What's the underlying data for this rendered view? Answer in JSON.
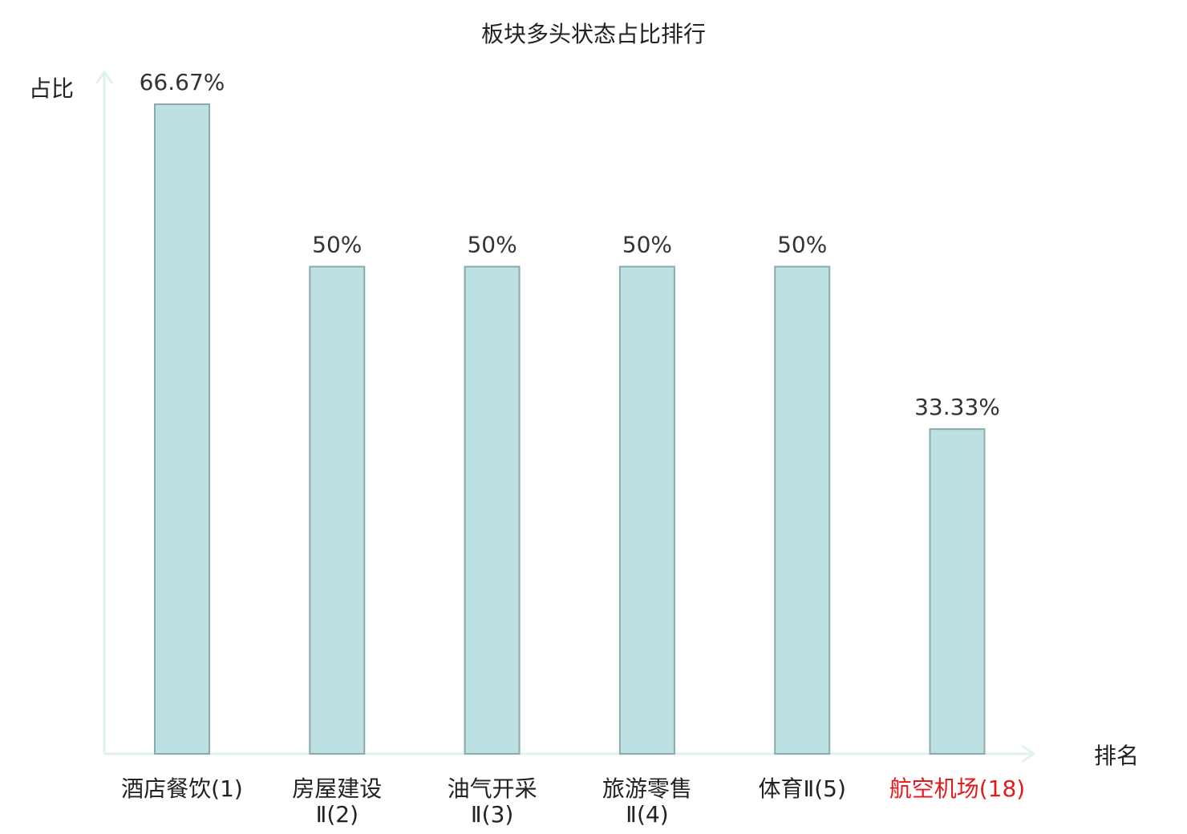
{
  "chart_data": {
    "type": "bar",
    "title": "板块多头状态占比排行",
    "xlabel": "排名",
    "ylabel": "占比",
    "ylim": [
      0,
      80
    ],
    "grid": false,
    "legend": "none",
    "categories": [
      {
        "name": "酒店餐饮",
        "rank": "(1)",
        "lines": [
          "酒店餐饮(1)"
        ],
        "highlight": false
      },
      {
        "name": "房屋建设Ⅱ",
        "rank": "(2)",
        "lines": [
          "房屋建设",
          "Ⅱ(2)"
        ],
        "highlight": false
      },
      {
        "name": "油气开采Ⅱ",
        "rank": "(3)",
        "lines": [
          "油气开采",
          "Ⅱ(3)"
        ],
        "highlight": false
      },
      {
        "name": "旅游零售Ⅱ",
        "rank": "(4)",
        "lines": [
          "旅游零售",
          "Ⅱ(4)"
        ],
        "highlight": false
      },
      {
        "name": "体育Ⅱ",
        "rank": "(5)",
        "lines": [
          "体育Ⅱ(5)"
        ],
        "highlight": false
      },
      {
        "name": "航空机场",
        "rank": "(18)",
        "lines": [
          "航空机场(18)"
        ],
        "highlight": true
      }
    ],
    "values": [
      66.67,
      50,
      50,
      50,
      50,
      33.33
    ],
    "value_labels": [
      "66.67%",
      "50%",
      "50%",
      "50%",
      "50%",
      "33.33%"
    ]
  },
  "colors": {
    "bar_fill": "#bde0e3",
    "bar_stroke": "#8aabae",
    "axis": "#e0f2ef",
    "text": "#222222",
    "highlight": "#e31a1c"
  }
}
